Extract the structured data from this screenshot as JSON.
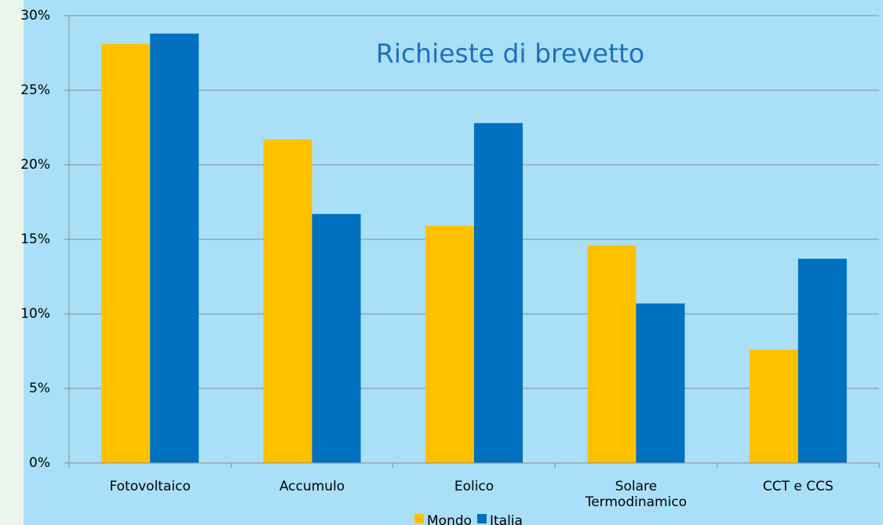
{
  "chart_data": {
    "type": "bar",
    "title": "Richieste di brevetto",
    "categories": [
      "Fotovoltaico",
      "Accumulo",
      "Eolico",
      "Solare Termodinamico",
      "CCT e CCS"
    ],
    "series": [
      {
        "name": "Mondo",
        "color": "#ffc000",
        "values": [
          28.1,
          21.7,
          15.9,
          14.6,
          7.6
        ]
      },
      {
        "name": "Italia",
        "color": "#0070c0",
        "values": [
          28.8,
          16.7,
          22.8,
          10.7,
          13.7
        ]
      }
    ],
    "ylim": [
      0,
      30
    ],
    "yticks": [
      {
        "value": 0,
        "label": "0%"
      },
      {
        "value": 5,
        "label": "5%"
      },
      {
        "value": 10,
        "label": "10%"
      },
      {
        "value": 15,
        "label": "15%"
      },
      {
        "value": 20,
        "label": "20%"
      },
      {
        "value": 25,
        "label": "25%"
      },
      {
        "value": 30,
        "label": "30%"
      }
    ],
    "grid": true,
    "legend": "bottom"
  }
}
